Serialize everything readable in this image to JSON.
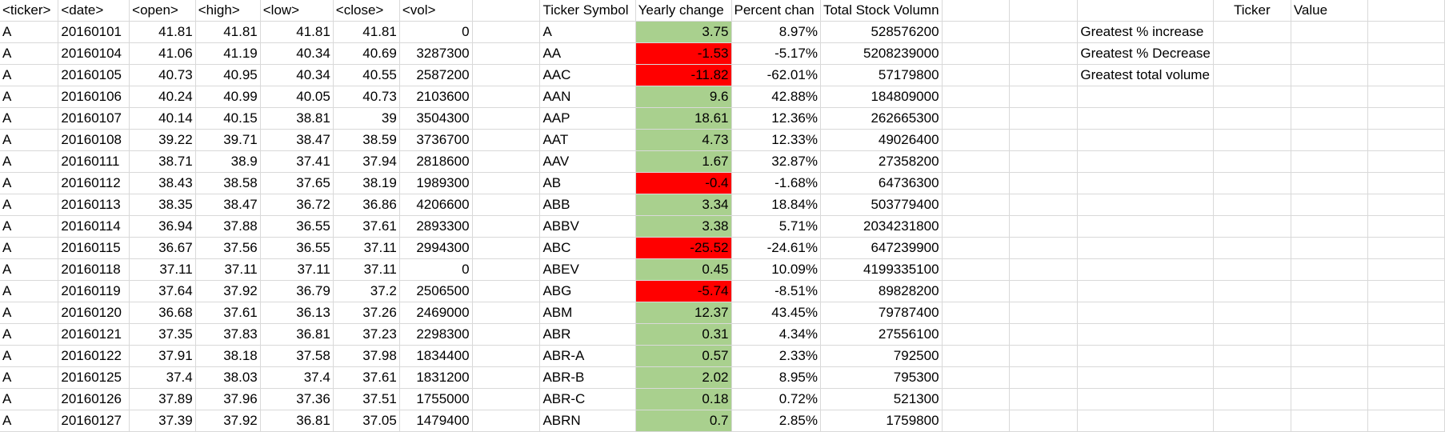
{
  "header": [
    "<ticker>",
    "<date>",
    "<open>",
    "<high>",
    "<low>",
    "<close>",
    "<vol>",
    "",
    "Ticker Symbol",
    "Yearly change",
    "Percent chan",
    "Total Stock Volumn",
    "",
    "",
    "",
    "Ticker",
    "Value",
    ""
  ],
  "raw_rows": [
    {
      "ticker": "A",
      "date": "20160101",
      "open": "41.81",
      "high": "41.81",
      "low": "41.81",
      "close": "41.81",
      "vol": "0"
    },
    {
      "ticker": "A",
      "date": "20160104",
      "open": "41.06",
      "high": "41.19",
      "low": "40.34",
      "close": "40.69",
      "vol": "3287300"
    },
    {
      "ticker": "A",
      "date": "20160105",
      "open": "40.73",
      "high": "40.95",
      "low": "40.34",
      "close": "40.55",
      "vol": "2587200"
    },
    {
      "ticker": "A",
      "date": "20160106",
      "open": "40.24",
      "high": "40.99",
      "low": "40.05",
      "close": "40.73",
      "vol": "2103600"
    },
    {
      "ticker": "A",
      "date": "20160107",
      "open": "40.14",
      "high": "40.15",
      "low": "38.81",
      "close": "39",
      "vol": "3504300"
    },
    {
      "ticker": "A",
      "date": "20160108",
      "open": "39.22",
      "high": "39.71",
      "low": "38.47",
      "close": "38.59",
      "vol": "3736700"
    },
    {
      "ticker": "A",
      "date": "20160111",
      "open": "38.71",
      "high": "38.9",
      "low": "37.41",
      "close": "37.94",
      "vol": "2818600"
    },
    {
      "ticker": "A",
      "date": "20160112",
      "open": "38.43",
      "high": "38.58",
      "low": "37.65",
      "close": "38.19",
      "vol": "1989300"
    },
    {
      "ticker": "A",
      "date": "20160113",
      "open": "38.35",
      "high": "38.47",
      "low": "36.72",
      "close": "36.86",
      "vol": "4206600"
    },
    {
      "ticker": "A",
      "date": "20160114",
      "open": "36.94",
      "high": "37.88",
      "low": "36.55",
      "close": "37.61",
      "vol": "2893300"
    },
    {
      "ticker": "A",
      "date": "20160115",
      "open": "36.67",
      "high": "37.56",
      "low": "36.55",
      "close": "37.11",
      "vol": "2994300"
    },
    {
      "ticker": "A",
      "date": "20160118",
      "open": "37.11",
      "high": "37.11",
      "low": "37.11",
      "close": "37.11",
      "vol": "0"
    },
    {
      "ticker": "A",
      "date": "20160119",
      "open": "37.64",
      "high": "37.92",
      "low": "36.79",
      "close": "37.2",
      "vol": "2506500"
    },
    {
      "ticker": "A",
      "date": "20160120",
      "open": "36.68",
      "high": "37.61",
      "low": "36.13",
      "close": "37.26",
      "vol": "2469000"
    },
    {
      "ticker": "A",
      "date": "20160121",
      "open": "37.35",
      "high": "37.83",
      "low": "36.81",
      "close": "37.23",
      "vol": "2298300"
    },
    {
      "ticker": "A",
      "date": "20160122",
      "open": "37.91",
      "high": "38.18",
      "low": "37.58",
      "close": "37.98",
      "vol": "1834400"
    },
    {
      "ticker": "A",
      "date": "20160125",
      "open": "37.4",
      "high": "38.03",
      "low": "37.4",
      "close": "37.61",
      "vol": "1831200"
    },
    {
      "ticker": "A",
      "date": "20160126",
      "open": "37.89",
      "high": "37.96",
      "low": "37.36",
      "close": "37.51",
      "vol": "1755000"
    },
    {
      "ticker": "A",
      "date": "20160127",
      "open": "37.39",
      "high": "37.92",
      "low": "36.81",
      "close": "37.05",
      "vol": "1479400"
    }
  ],
  "summary_rows": [
    {
      "symbol": "A",
      "change": "3.75",
      "percent": "8.97%",
      "volume": "528576200",
      "trend": "positive"
    },
    {
      "symbol": "AA",
      "change": "-1.53",
      "percent": "-5.17%",
      "volume": "5208239000",
      "trend": "negative"
    },
    {
      "symbol": "AAC",
      "change": "-11.82",
      "percent": "-62.01%",
      "volume": "57179800",
      "trend": "negative"
    },
    {
      "symbol": "AAN",
      "change": "9.6",
      "percent": "42.88%",
      "volume": "184809000",
      "trend": "positive"
    },
    {
      "symbol": "AAP",
      "change": "18.61",
      "percent": "12.36%",
      "volume": "262665300",
      "trend": "positive"
    },
    {
      "symbol": "AAT",
      "change": "4.73",
      "percent": "12.33%",
      "volume": "49026400",
      "trend": "positive"
    },
    {
      "symbol": "AAV",
      "change": "1.67",
      "percent": "32.87%",
      "volume": "27358200",
      "trend": "positive"
    },
    {
      "symbol": "AB",
      "change": "-0.4",
      "percent": "-1.68%",
      "volume": "64736300",
      "trend": "negative"
    },
    {
      "symbol": "ABB",
      "change": "3.34",
      "percent": "18.84%",
      "volume": "503779400",
      "trend": "positive"
    },
    {
      "symbol": "ABBV",
      "change": "3.38",
      "percent": "5.71%",
      "volume": "2034231800",
      "trend": "positive"
    },
    {
      "symbol": "ABC",
      "change": "-25.52",
      "percent": "-24.61%",
      "volume": "647239900",
      "trend": "negative"
    },
    {
      "symbol": "ABEV",
      "change": "0.45",
      "percent": "10.09%",
      "volume": "4199335100",
      "trend": "positive"
    },
    {
      "symbol": "ABG",
      "change": "-5.74",
      "percent": "-8.51%",
      "volume": "89828200",
      "trend": "negative"
    },
    {
      "symbol": "ABM",
      "change": "12.37",
      "percent": "43.45%",
      "volume": "79787400",
      "trend": "positive"
    },
    {
      "symbol": "ABR",
      "change": "0.31",
      "percent": "4.34%",
      "volume": "27556100",
      "trend": "positive"
    },
    {
      "symbol": "ABR-A",
      "change": "0.57",
      "percent": "2.33%",
      "volume": "792500",
      "trend": "positive"
    },
    {
      "symbol": "ABR-B",
      "change": "2.02",
      "percent": "8.95%",
      "volume": "795300",
      "trend": "positive"
    },
    {
      "symbol": "ABR-C",
      "change": "0.18",
      "percent": "0.72%",
      "volume": "521300",
      "trend": "positive"
    },
    {
      "symbol": "ABRN",
      "change": "0.7",
      "percent": "2.85%",
      "volume": "1759800",
      "trend": "positive"
    }
  ],
  "greatest_labels": [
    "Greatest % increase",
    "Greatest % Decrease",
    "Greatest total volume"
  ],
  "colors": {
    "positive": "#a9d08e",
    "negative": "#ff0000",
    "gridline": "#d9d9d9"
  }
}
